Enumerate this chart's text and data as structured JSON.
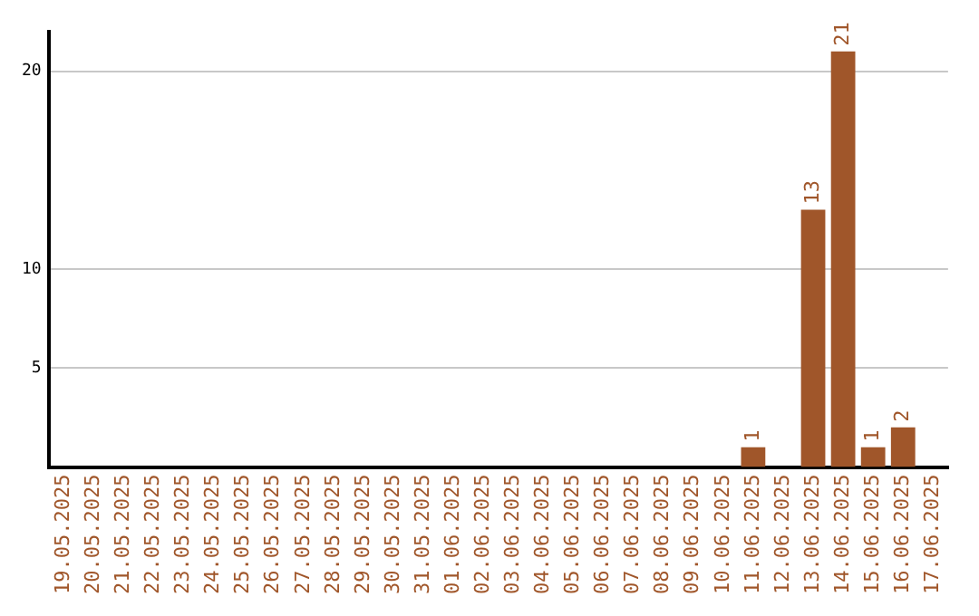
{
  "chart_data": {
    "type": "bar",
    "categories": [
      "19.05.2025",
      "20.05.2025",
      "21.05.2025",
      "22.05.2025",
      "23.05.2025",
      "24.05.2025",
      "25.05.2025",
      "26.05.2025",
      "27.05.2025",
      "28.05.2025",
      "29.05.2025",
      "30.05.2025",
      "31.05.2025",
      "01.06.2025",
      "02.06.2025",
      "03.06.2025",
      "04.06.2025",
      "05.06.2025",
      "06.06.2025",
      "07.06.2025",
      "08.06.2025",
      "09.06.2025",
      "10.06.2025",
      "11.06.2025",
      "12.06.2025",
      "13.06.2025",
      "14.06.2025",
      "15.06.2025",
      "16.06.2025",
      "17.06.2025"
    ],
    "values": [
      0,
      0,
      0,
      0,
      0,
      0,
      0,
      0,
      0,
      0,
      0,
      0,
      0,
      0,
      0,
      0,
      0,
      0,
      0,
      0,
      0,
      0,
      0,
      1,
      0,
      13,
      21,
      1,
      2,
      0
    ],
    "value_labels": [
      null,
      null,
      null,
      null,
      null,
      null,
      null,
      null,
      null,
      null,
      null,
      null,
      null,
      null,
      null,
      null,
      null,
      null,
      null,
      null,
      null,
      null,
      null,
      "1",
      null,
      "13",
      "21",
      "1",
      "2",
      null
    ],
    "color": "#a0562a",
    "ylim": [
      0,
      22
    ],
    "yticks": [
      5,
      10,
      20
    ],
    "grid": "y",
    "legend": false
  }
}
